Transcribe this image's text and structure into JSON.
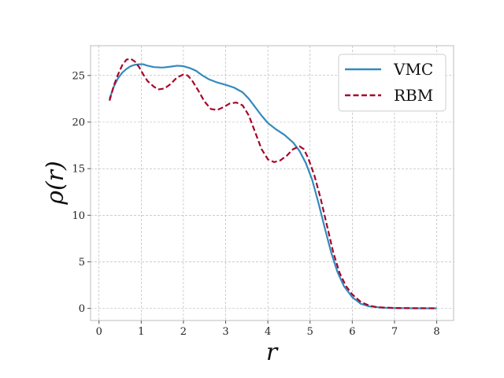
{
  "chart_data": {
    "type": "line",
    "title": "",
    "xlabel": "r",
    "ylabel": "ρ(r)",
    "xlim": [
      -0.2,
      8.4
    ],
    "ylim": [
      -1.3,
      28.2
    ],
    "xticks": [
      0,
      1,
      2,
      3,
      4,
      5,
      6,
      7,
      8
    ],
    "yticks": [
      0,
      5,
      10,
      15,
      20,
      25
    ],
    "grid": true,
    "legend_position": "top-right",
    "series": [
      {
        "name": "VMC",
        "color": "#348ABD",
        "style": "solid",
        "points": [
          [
            0.25,
            22.5
          ],
          [
            0.35,
            23.8
          ],
          [
            0.45,
            24.7
          ],
          [
            0.55,
            25.3
          ],
          [
            0.65,
            25.7
          ],
          [
            0.75,
            26.0
          ],
          [
            0.85,
            26.15
          ],
          [
            0.95,
            26.2
          ],
          [
            1.05,
            26.2
          ],
          [
            1.15,
            26.05
          ],
          [
            1.3,
            25.9
          ],
          [
            1.5,
            25.85
          ],
          [
            1.7,
            25.95
          ],
          [
            1.85,
            26.05
          ],
          [
            2.0,
            26.0
          ],
          [
            2.15,
            25.8
          ],
          [
            2.3,
            25.5
          ],
          [
            2.45,
            25.0
          ],
          [
            2.6,
            24.6
          ],
          [
            2.8,
            24.25
          ],
          [
            3.0,
            24.0
          ],
          [
            3.2,
            23.7
          ],
          [
            3.4,
            23.2
          ],
          [
            3.55,
            22.5
          ],
          [
            3.7,
            21.6
          ],
          [
            3.85,
            20.7
          ],
          [
            4.0,
            19.9
          ],
          [
            4.2,
            19.2
          ],
          [
            4.4,
            18.6
          ],
          [
            4.6,
            17.8
          ],
          [
            4.75,
            16.9
          ],
          [
            4.9,
            15.6
          ],
          [
            5.05,
            13.8
          ],
          [
            5.2,
            11.3
          ],
          [
            5.35,
            8.6
          ],
          [
            5.5,
            6.0
          ],
          [
            5.65,
            3.9
          ],
          [
            5.8,
            2.4
          ],
          [
            6.0,
            1.2
          ],
          [
            6.2,
            0.5
          ],
          [
            6.4,
            0.22
          ],
          [
            6.7,
            0.08
          ],
          [
            7.0,
            0.03
          ],
          [
            7.5,
            0.01
          ],
          [
            8.0,
            0.01
          ]
        ]
      },
      {
        "name": "RBM",
        "color": "#A60628",
        "style": "dashed",
        "points": [
          [
            0.25,
            22.3
          ],
          [
            0.35,
            23.9
          ],
          [
            0.45,
            25.1
          ],
          [
            0.55,
            26.1
          ],
          [
            0.65,
            26.7
          ],
          [
            0.75,
            26.8
          ],
          [
            0.85,
            26.5
          ],
          [
            0.95,
            25.9
          ],
          [
            1.05,
            25.1
          ],
          [
            1.15,
            24.4
          ],
          [
            1.3,
            23.8
          ],
          [
            1.4,
            23.5
          ],
          [
            1.55,
            23.6
          ],
          [
            1.7,
            24.1
          ],
          [
            1.85,
            24.8
          ],
          [
            2.0,
            25.1
          ],
          [
            2.1,
            25.0
          ],
          [
            2.2,
            24.5
          ],
          [
            2.35,
            23.4
          ],
          [
            2.5,
            22.2
          ],
          [
            2.65,
            21.4
          ],
          [
            2.8,
            21.3
          ],
          [
            2.95,
            21.6
          ],
          [
            3.1,
            22.0
          ],
          [
            3.25,
            22.1
          ],
          [
            3.4,
            21.8
          ],
          [
            3.55,
            20.7
          ],
          [
            3.7,
            18.9
          ],
          [
            3.85,
            17.1
          ],
          [
            4.0,
            16.0
          ],
          [
            4.15,
            15.7
          ],
          [
            4.3,
            15.9
          ],
          [
            4.45,
            16.4
          ],
          [
            4.6,
            17.1
          ],
          [
            4.75,
            17.4
          ],
          [
            4.85,
            17.1
          ],
          [
            4.95,
            16.2
          ],
          [
            5.1,
            14.3
          ],
          [
            5.25,
            11.8
          ],
          [
            5.4,
            8.9
          ],
          [
            5.55,
            6.0
          ],
          [
            5.7,
            3.8
          ],
          [
            5.85,
            2.4
          ],
          [
            6.0,
            1.5
          ],
          [
            6.2,
            0.7
          ],
          [
            6.4,
            0.3
          ],
          [
            6.6,
            0.12
          ],
          [
            7.0,
            0.05
          ],
          [
            7.5,
            0.02
          ],
          [
            8.0,
            0.01
          ]
        ]
      }
    ]
  }
}
